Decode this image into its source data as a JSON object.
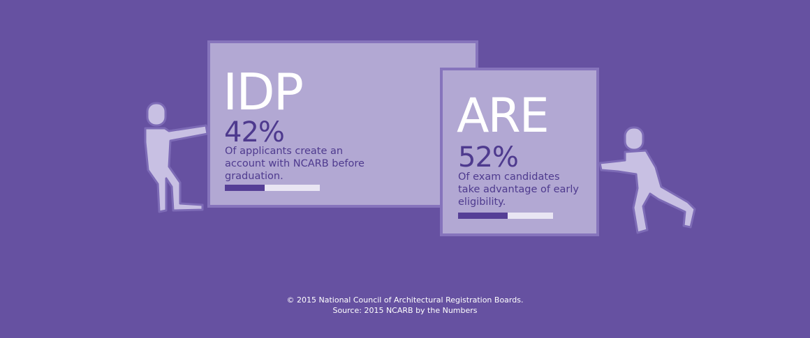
{
  "idp": {
    "heading": "IDP",
    "percent_label": "42%",
    "percent_value": 0.42,
    "description": "Of applicants create an account with NCARB before graduation."
  },
  "are": {
    "heading": "ARE",
    "percent_label": "52%",
    "percent_value": 0.52,
    "description": "Of exam candidates take advantage of early eligibility."
  },
  "footer": {
    "line1": "© 2015 National Council of Architectural Registration Boards.",
    "line2": "Source: 2015 NCARB by the Numbers"
  },
  "colors": {
    "background": "#6651a1",
    "card": "#b2a8d3",
    "card_border": "#8674bc",
    "accent_dark": "#553e96",
    "bar_track": "#e9e5f3",
    "text_dark": "#4e3a8e",
    "figure": "#c8c0e3"
  },
  "icons": [
    "person-pulling-icon",
    "person-pushing-icon"
  ]
}
